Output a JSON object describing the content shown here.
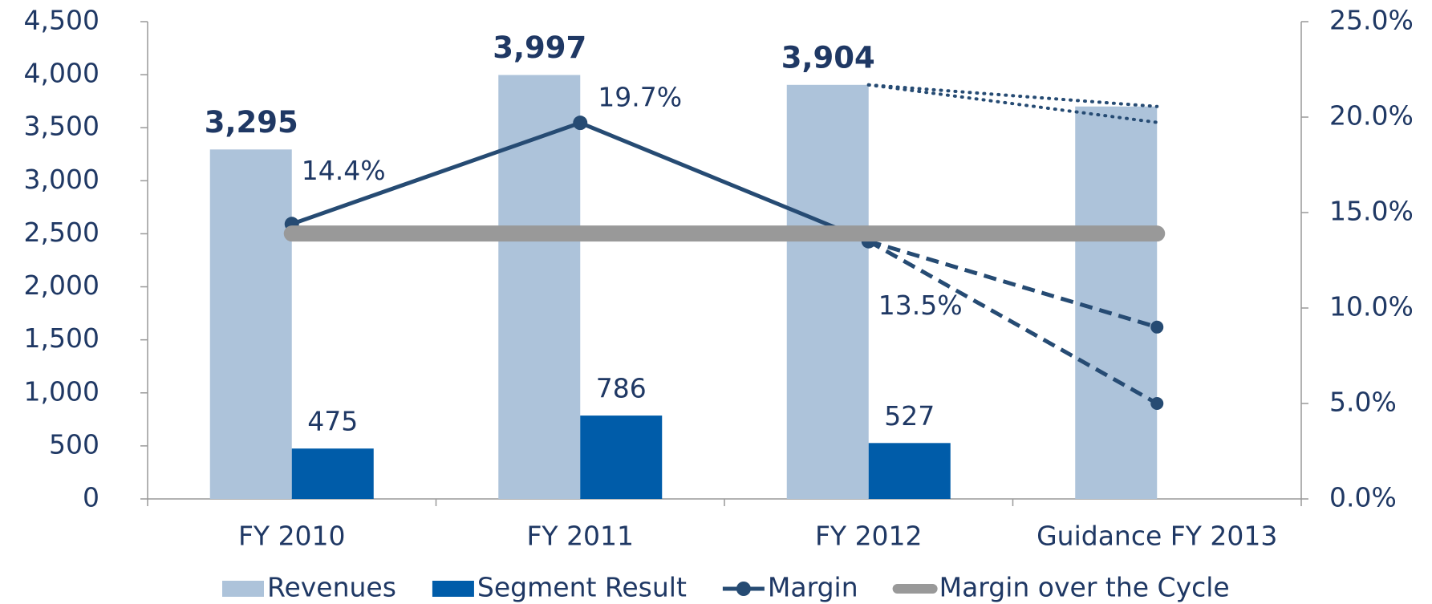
{
  "chart_data": {
    "type": "bar",
    "categories": [
      "FY 2010",
      "FY 2011",
      "FY 2012",
      "Guidance FY 2013"
    ],
    "series": [
      {
        "name": "Revenues",
        "type": "bar",
        "color": "#adc3da",
        "values": [
          3295,
          3997,
          3904,
          3700
        ],
        "value_labels": [
          "3,295",
          "3,997",
          "3,904",
          null
        ]
      },
      {
        "name": "Segment Result",
        "type": "bar",
        "color": "#005ca9",
        "values": [
          475,
          786,
          527,
          null
        ],
        "value_labels": [
          "475",
          "786",
          "527",
          null
        ]
      },
      {
        "name": "Margin",
        "type": "line",
        "axis": "y2",
        "color": "#264b73",
        "values": [
          14.4,
          19.7,
          13.5,
          null
        ],
        "value_labels": [
          "14.4%",
          "19.7%",
          "13.5%",
          null
        ]
      },
      {
        "name": "Margin over the Cycle",
        "type": "line",
        "axis": "y2",
        "color": "#999999",
        "values": [
          13.9,
          13.9,
          13.9,
          13.9
        ]
      },
      {
        "type": "line",
        "axis": "y2",
        "dash": "dashed",
        "color": "#264b73",
        "values": [
          null,
          null,
          13.5,
          9.0
        ]
      },
      {
        "type": "line",
        "axis": "y2",
        "dash": "dashed",
        "color": "#264b73",
        "values": [
          null,
          null,
          13.5,
          5.0
        ]
      },
      {
        "type": "line",
        "axis": "y",
        "dash": "dotted",
        "color": "#264b73",
        "values": [
          null,
          null,
          3904,
          3700
        ]
      },
      {
        "type": "line",
        "axis": "y",
        "dash": "dotted",
        "color": "#264b73",
        "values": [
          null,
          null,
          3904,
          3550
        ]
      }
    ],
    "ylim": [
      0,
      4500
    ],
    "yticks": [
      0,
      500,
      {
        "value": 1000,
        "label": "1,000"
      },
      {
        "value": 1500,
        "label": "1,500"
      },
      {
        "value": 2000,
        "label": "2,000"
      },
      {
        "value": 2500,
        "label": "2,500"
      },
      {
        "value": 3000,
        "label": "3,000"
      },
      {
        "value": 3500,
        "label": "3,500"
      },
      {
        "value": 4000,
        "label": "4,000"
      },
      {
        "value": 4500,
        "label": "4,500"
      }
    ],
    "y2lim": [
      0,
      25
    ],
    "y2ticks": [
      {
        "value": 0,
        "label": "0.0%"
      },
      {
        "value": 5,
        "label": "5.0%"
      },
      {
        "value": 10,
        "label": "10.0%"
      },
      {
        "value": 15,
        "label": "15.0%"
      },
      {
        "value": 20,
        "label": "20.0%"
      },
      {
        "value": 25,
        "label": "25.0%"
      }
    ],
    "legend": "bottom"
  }
}
